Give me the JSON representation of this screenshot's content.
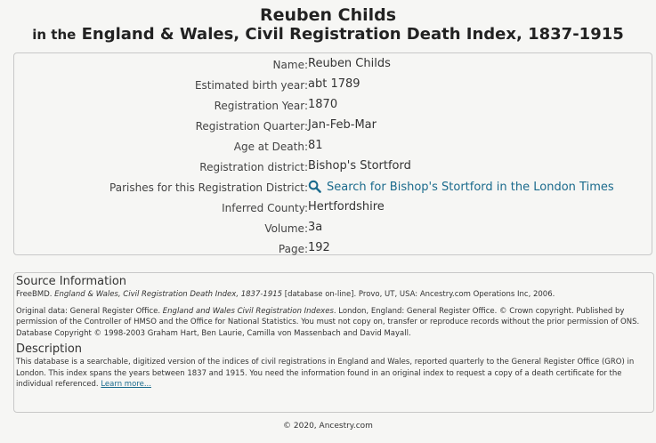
{
  "title": {
    "name": "Reuben Childs",
    "prefix": "in the",
    "collection": "England & Wales, Civil Registration Death Index, 1837-1915"
  },
  "record": [
    {
      "label": "Name:",
      "value": "Reuben Childs"
    },
    {
      "label": "Estimated birth year:",
      "value": "abt 1789"
    },
    {
      "label": "Registration Year:",
      "value": "1870"
    },
    {
      "label": "Registration Quarter:",
      "value": "Jan-Feb-Mar"
    },
    {
      "label": "Age at Death:",
      "value": "81"
    },
    {
      "label": "Registration district:",
      "value": "Bishop's Stortford"
    },
    {
      "label": "Parishes for this Registration District:",
      "value": "Search for Bishop's Stortford in the London Times",
      "icon": "search-icon",
      "is_link": true
    },
    {
      "label": "Inferred County:",
      "value": "Hertfordshire"
    },
    {
      "label": "Volume:",
      "value": "3a"
    },
    {
      "label": "Page:",
      "value": "192"
    }
  ],
  "source": {
    "heading": "Source Information",
    "citation_pre": "FreeBMD. ",
    "citation_title": "England & Wales, Civil Registration Death Index, 1837-1915",
    "citation_post": " [database on-line]. Provo, UT, USA: Ancestry.com Operations Inc, 2006.",
    "original_pre": "Original data: General Register Office. ",
    "original_title": "England and Wales Civil Registration Indexes",
    "original_post": ". London, England: General Register Office. © Crown copyright. Published by permission of the Controller of HMSO and the Office for National Statistics. You must not copy on, transfer or reproduce records without the prior permission of ONS. Database Copyright © 1998-2003 Graham Hart, Ben Laurie, Camilla von Massenbach and David Mayall."
  },
  "description": {
    "heading": "Description",
    "text": "This database is a searchable, digitized version of the indices of civil registrations in England and Wales, reported quarterly to the General Register Office (GRO) in London. This index spans the years between 1837 and 1915. You need the information found in an original index to request a copy of a death certificate for the individual referenced. ",
    "learn_more": "Learn more..."
  },
  "footer": "© 2020, Ancestry.com",
  "colors": {
    "link": "#1a6a8c",
    "background": "#f6f6f4",
    "border": "#c8c8c8"
  }
}
